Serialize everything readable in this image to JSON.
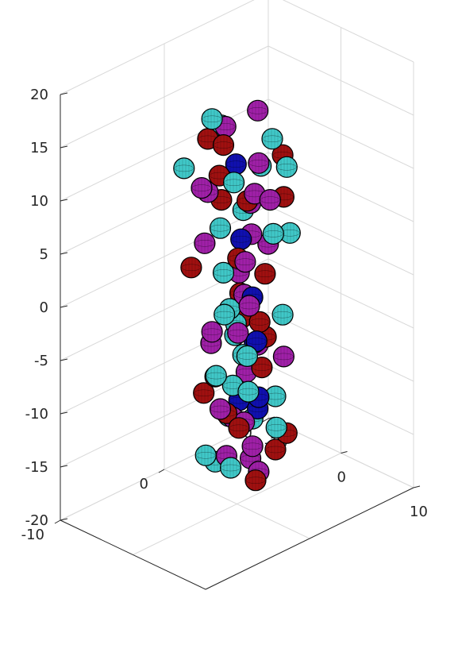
{
  "chart_data": {
    "type": "scatter",
    "subtype": "3d-spheres",
    "title": "",
    "xlabel": "",
    "ylabel": "",
    "zlabel": "",
    "xlim": [
      -10,
      10
    ],
    "ylim": [
      -10,
      10
    ],
    "zlim": [
      -20,
      20
    ],
    "x_ticks": [
      "-10",
      "0",
      "10"
    ],
    "y_ticks": [
      "-10",
      "0",
      "10"
    ],
    "z_ticks": [
      "-20",
      "-15",
      "-10",
      "-5",
      "0",
      "5",
      "10",
      "15",
      "20"
    ],
    "grid": true,
    "legend": "none",
    "colors": {
      "cyan": "#40c8c8",
      "magenta": "#a020a8",
      "red": "#a01010",
      "blue": "#1010b0",
      "edge": "#000000",
      "grid": "#d9d9d9",
      "axis": "#262626"
    },
    "series": [
      {
        "color": "cyan",
        "points": [
          [
            -2,
            -1,
            16
          ],
          [
            2,
            2,
            14
          ],
          [
            -5,
            2,
            13
          ],
          [
            -3,
            -3,
            12
          ],
          [
            1,
            -1,
            11
          ],
          [
            4,
            2,
            12
          ],
          [
            -1,
            3,
            10
          ],
          [
            2,
            -3,
            8
          ],
          [
            5,
            0,
            7
          ],
          [
            -2,
            2,
            6
          ],
          [
            3,
            3,
            5
          ],
          [
            1,
            -2,
            3
          ],
          [
            4,
            -4,
            1
          ],
          [
            8,
            -5,
            -1
          ],
          [
            10,
            -6,
            0
          ],
          [
            -1,
            0,
            -2
          ],
          [
            2,
            3,
            -3
          ],
          [
            -3,
            2,
            -5
          ],
          [
            -6,
            4,
            -8
          ],
          [
            0,
            -2,
            -7
          ],
          [
            3,
            -1,
            -8
          ],
          [
            -2,
            1,
            -10
          ],
          [
            1,
            3,
            -11
          ],
          [
            4,
            1,
            -12
          ],
          [
            -4,
            2,
            -14
          ],
          [
            0,
            -3,
            -14
          ],
          [
            -5,
            5,
            -16
          ],
          [
            2,
            -2,
            -15
          ],
          [
            -3,
            0,
            -17
          ]
        ]
      },
      {
        "color": "magenta",
        "points": [
          [
            0,
            2,
            16
          ],
          [
            -3,
            1,
            14
          ],
          [
            3,
            0,
            13
          ],
          [
            -6,
            3,
            12
          ],
          [
            6,
            -1,
            11
          ],
          [
            -2,
            -2,
            10
          ],
          [
            1,
            1,
            9
          ],
          [
            -4,
            0,
            8
          ],
          [
            -1,
            2,
            7
          ],
          [
            2,
            0,
            6
          ],
          [
            4,
            -2,
            5
          ],
          [
            -3,
            -1,
            4
          ],
          [
            0,
            3,
            3
          ],
          [
            6,
            -3,
            2
          ],
          [
            1,
            0,
            0
          ],
          [
            -4,
            3,
            -1
          ],
          [
            3,
            -2,
            -2
          ],
          [
            -2,
            -1,
            -4
          ],
          [
            5,
            1,
            -5
          ],
          [
            0,
            2,
            -6
          ],
          [
            -5,
            1,
            -7
          ],
          [
            2,
            -3,
            -9
          ],
          [
            -3,
            3,
            -10
          ],
          [
            1,
            0,
            -12
          ],
          [
            5,
            -2,
            -12
          ],
          [
            -2,
            1,
            -13
          ],
          [
            0,
            -1,
            -15
          ],
          [
            -4,
            3,
            -15
          ],
          [
            3,
            0,
            -16
          ],
          [
            -1,
            2,
            -17
          ]
        ]
      },
      {
        "color": "red",
        "points": [
          [
            1,
            -2,
            15
          ],
          [
            -4,
            0,
            13
          ],
          [
            2,
            3,
            12
          ],
          [
            -1,
            -1,
            11
          ],
          [
            5,
            1,
            10
          ],
          [
            0,
            1,
            8
          ],
          [
            -5,
            2,
            6
          ],
          [
            3,
            -2,
            5
          ],
          [
            -2,
            -3,
            3
          ],
          [
            1,
            2,
            1
          ],
          [
            6,
            -2,
            0
          ],
          [
            -1,
            1,
            -1
          ],
          [
            4,
            0,
            -3
          ],
          [
            -5,
            4,
            -6
          ],
          [
            -8,
            6,
            -8
          ],
          [
            2,
            1,
            -7
          ],
          [
            6,
            -4,
            -9
          ],
          [
            -3,
            0,
            -9
          ],
          [
            0,
            -1,
            -11
          ],
          [
            4,
            2,
            -13
          ],
          [
            -6,
            1,
            -12
          ],
          [
            1,
            3,
            -16
          ],
          [
            4,
            -1,
            -16
          ]
        ]
      },
      {
        "color": "blue",
        "points": [
          [
            -3,
            2,
            10
          ],
          [
            2,
            -1,
            6
          ],
          [
            5,
            -2,
            2
          ],
          [
            7,
            -3,
            -1
          ],
          [
            1,
            1,
            -5
          ],
          [
            3,
            0,
            -9
          ],
          [
            -4,
            3,
            -13
          ],
          [
            0,
            2,
            -12
          ]
        ]
      }
    ]
  }
}
